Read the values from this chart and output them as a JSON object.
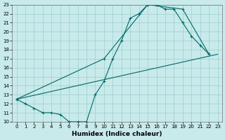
{
  "xlabel": "Humidex (Indice chaleur)",
  "bg_color": "#c8eaea",
  "grid_color": "#9ecece",
  "line_color": "#006868",
  "xlim": [
    -0.5,
    23.5
  ],
  "ylim": [
    10,
    23
  ],
  "xticks": [
    0,
    1,
    2,
    3,
    4,
    5,
    6,
    7,
    8,
    9,
    10,
    11,
    12,
    13,
    14,
    15,
    16,
    17,
    18,
    19,
    20,
    21,
    22,
    23
  ],
  "yticks": [
    10,
    11,
    12,
    13,
    14,
    15,
    16,
    17,
    18,
    19,
    20,
    21,
    22,
    23
  ],
  "line1_x": [
    0,
    1,
    2,
    3,
    4,
    5,
    6,
    7,
    8,
    9,
    10,
    11,
    12,
    13,
    14,
    15,
    16,
    17,
    18,
    19,
    20,
    21,
    22
  ],
  "line1_y": [
    12.5,
    12.0,
    11.5,
    11.0,
    11.0,
    10.8,
    10.0,
    10.0,
    10.0,
    13.0,
    14.5,
    17.0,
    19.0,
    21.5,
    22.0,
    23.0,
    23.0,
    22.5,
    22.5,
    21.0,
    19.5,
    18.5,
    17.5
  ],
  "line2_x": [
    0,
    10,
    15,
    19,
    22
  ],
  "line2_y": [
    12.5,
    17.0,
    23.0,
    22.5,
    17.5
  ],
  "line3_x": [
    0,
    23
  ],
  "line3_y": [
    12.5,
    17.5
  ]
}
